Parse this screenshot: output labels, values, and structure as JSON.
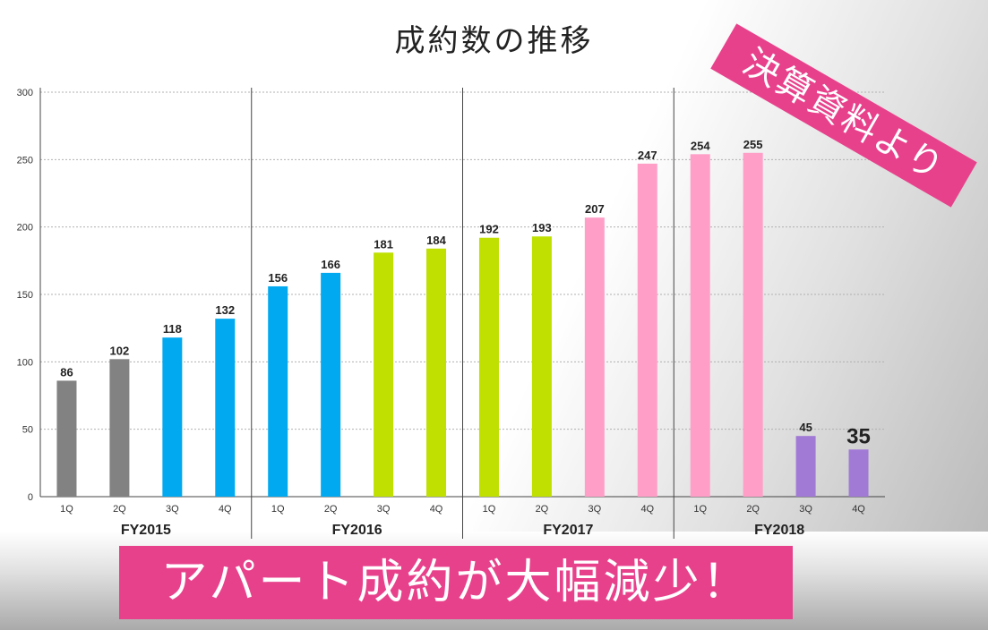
{
  "title": "成約数の推移",
  "stamp": "決算資料より",
  "banner": "アパート成約が大幅減少！",
  "colors": {
    "gray": "#828282",
    "blue": "#00a9f0",
    "green": "#bfe000",
    "pink": "#ff9fc8",
    "purple": "#a17ad6",
    "accent": "#e8418c"
  },
  "chart_data": {
    "type": "bar",
    "ylim": [
      0,
      300
    ],
    "yticks": [
      0,
      50,
      100,
      150,
      200,
      250,
      300
    ],
    "grid": true,
    "groups": [
      {
        "label": "FY2015",
        "quarters": [
          "1Q",
          "2Q",
          "3Q",
          "4Q"
        ],
        "values": [
          86,
          102,
          118,
          132
        ],
        "colors": [
          "gray",
          "gray",
          "blue",
          "blue"
        ]
      },
      {
        "label": "FY2016",
        "quarters": [
          "1Q",
          "2Q",
          "3Q",
          "4Q"
        ],
        "values": [
          156,
          166,
          181,
          184
        ],
        "colors": [
          "blue",
          "blue",
          "green",
          "green"
        ]
      },
      {
        "label": "FY2017",
        "quarters": [
          "1Q",
          "2Q",
          "3Q",
          "4Q"
        ],
        "values": [
          192,
          193,
          207,
          247
        ],
        "colors": [
          "green",
          "green",
          "pink",
          "pink"
        ]
      },
      {
        "label": "FY2018",
        "quarters": [
          "1Q",
          "2Q",
          "3Q",
          "4Q"
        ],
        "values": [
          254,
          255,
          45,
          35
        ],
        "colors": [
          "pink",
          "pink",
          "purple",
          "purple"
        ]
      }
    ]
  }
}
